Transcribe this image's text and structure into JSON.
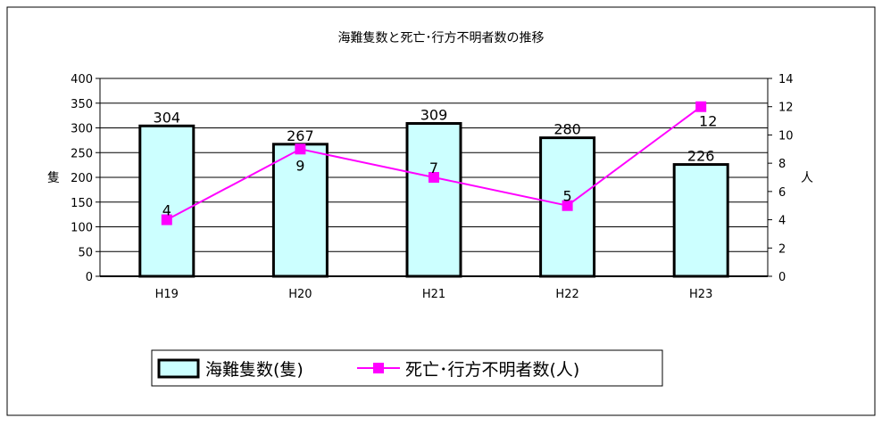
{
  "chart_data": {
    "type": "bar",
    "title": "海難隻数と死亡･行方不明者数の推移",
    "categories": [
      "H19",
      "H20",
      "H21",
      "H22",
      "H23"
    ],
    "ylabel": "隻",
    "y2label": "人",
    "ylim": [
      0,
      400
    ],
    "y2lim": [
      0,
      14
    ],
    "yticks": [
      "0",
      "50",
      "100",
      "150",
      "200",
      "250",
      "300",
      "350",
      "400"
    ],
    "y2ticks": [
      "0",
      "2",
      "4",
      "6",
      "8",
      "10",
      "12",
      "14"
    ],
    "grid": true,
    "legend_position": "bottom",
    "series": [
      {
        "name": "海難隻数(隻)",
        "type": "bar",
        "axis": "left",
        "values": [
          304,
          267,
          309,
          280,
          226
        ],
        "labels": [
          "304",
          "267",
          "309",
          "280",
          "226"
        ],
        "color": "#ccffff",
        "edge_color": "#000000"
      },
      {
        "name": "死亡･行方不明者数(人)",
        "type": "line",
        "axis": "right",
        "values": [
          4,
          9,
          7,
          5,
          12
        ],
        "labels": [
          "4",
          "9",
          "7",
          "5",
          "12"
        ],
        "color": "#ff00ff"
      }
    ]
  }
}
